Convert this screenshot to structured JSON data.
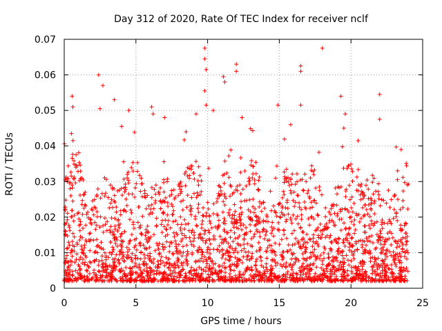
{
  "chart_data": {
    "type": "scatter",
    "title": "Day 312 of 2020, Rate Of TEC Index for receiver nclf",
    "xlabel": "GPS time / hours",
    "ylabel": "ROTI / TECUs",
    "xlim": [
      0,
      25
    ],
    "ylim": [
      0,
      0.07
    ],
    "x_ticks": [
      "0",
      "5",
      "10",
      "15",
      "20",
      "25"
    ],
    "y_ticks": [
      "0",
      "0.01",
      "0.02",
      "0.03",
      "0.04",
      "0.05",
      "0.06",
      "0.07"
    ],
    "grid": true,
    "marker": "+",
    "series_color": "#ff0000",
    "data_extent_hours": [
      0,
      24
    ],
    "series": [
      {
        "name": "ROTI",
        "notable_points": [
          {
            "x": 0.55,
            "y": 0.054
          },
          {
            "x": 0.6,
            "y": 0.051
          },
          {
            "x": 0.5,
            "y": 0.0435
          },
          {
            "x": 2.4,
            "y": 0.06
          },
          {
            "x": 2.7,
            "y": 0.057
          },
          {
            "x": 2.5,
            "y": 0.0505
          },
          {
            "x": 3.5,
            "y": 0.053
          },
          {
            "x": 4.0,
            "y": 0.0455
          },
          {
            "x": 4.5,
            "y": 0.05
          },
          {
            "x": 6.1,
            "y": 0.051
          },
          {
            "x": 6.2,
            "y": 0.049
          },
          {
            "x": 7.0,
            "y": 0.048
          },
          {
            "x": 8.5,
            "y": 0.044
          },
          {
            "x": 9.2,
            "y": 0.049
          },
          {
            "x": 9.8,
            "y": 0.0675
          },
          {
            "x": 9.8,
            "y": 0.0645
          },
          {
            "x": 9.9,
            "y": 0.0615
          },
          {
            "x": 9.8,
            "y": 0.0555
          },
          {
            "x": 9.9,
            "y": 0.0515
          },
          {
            "x": 10.4,
            "y": 0.05
          },
          {
            "x": 11.2,
            "y": 0.058
          },
          {
            "x": 11.1,
            "y": 0.0595
          },
          {
            "x": 12.0,
            "y": 0.063
          },
          {
            "x": 12.0,
            "y": 0.061
          },
          {
            "x": 12.4,
            "y": 0.048
          },
          {
            "x": 14.9,
            "y": 0.0515
          },
          {
            "x": 15.8,
            "y": 0.046
          },
          {
            "x": 16.5,
            "y": 0.0625
          },
          {
            "x": 16.5,
            "y": 0.061
          },
          {
            "x": 16.5,
            "y": 0.0515
          },
          {
            "x": 18.0,
            "y": 0.0675
          },
          {
            "x": 19.3,
            "y": 0.054
          },
          {
            "x": 19.6,
            "y": 0.049
          },
          {
            "x": 19.5,
            "y": 0.045
          },
          {
            "x": 20.5,
            "y": 0.0415
          },
          {
            "x": 22.0,
            "y": 0.0545
          },
          {
            "x": 22.0,
            "y": 0.0475
          },
          {
            "x": 23.5,
            "y": 0.039
          }
        ]
      }
    ]
  }
}
